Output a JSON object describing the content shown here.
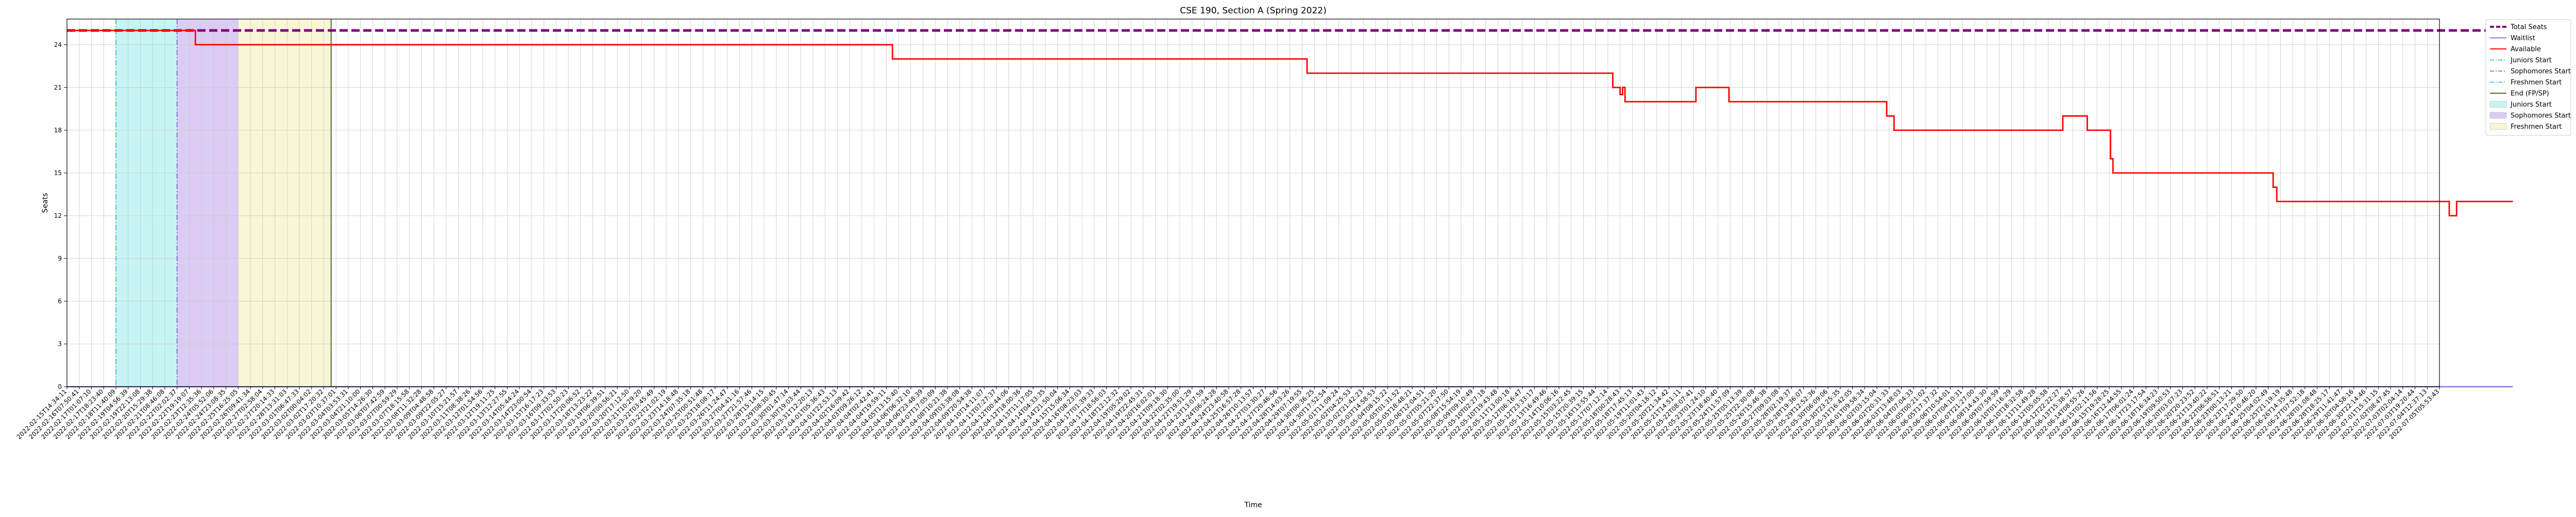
{
  "chart_data": {
    "type": "line",
    "title": "CSE 190, Section A (Spring 2022)",
    "xlabel": "Time",
    "ylabel": "Seats",
    "ylim": [
      0,
      25.8
    ],
    "yticks": [
      0,
      3,
      6,
      9,
      12,
      15,
      18,
      21,
      24
    ],
    "grid": true,
    "legend_position": "outside-right",
    "colors": {
      "total": "#800080",
      "waitlist": "#9370db",
      "available": "#ff0000",
      "juniors_line": "#20b2aa",
      "sophomores_line": "#6a5acd",
      "end_line": "#556b2f",
      "juniors_fill": "#c6f4f4",
      "sophomores_fill": "#dcccf3",
      "freshmen_fill": "#f8f6d6"
    },
    "x_tick_labels": [
      "2022-02-15T14:34:11",
      "2022-02-16T07:50:41",
      "2022-02-17T01:07:10",
      "2022-02-17T18:23:40",
      "2022-02-18T11:40:09",
      "2022-02-19T04:56:39",
      "2022-02-19T22:13:08",
      "2022-02-20T15:29:38",
      "2022-02-21T08:46:08",
      "2022-02-22T02:02:37",
      "2022-02-22T19:19:07",
      "2022-02-23T12:35:36",
      "2022-02-24T05:52:06",
      "2022-02-24T23:08:35",
      "2022-02-25T16:25:05",
      "2022-02-26T09:41:34",
      "2022-02-27T02:58:04",
      "2022-02-27T20:14:33",
      "2022-02-28T13:31:03",
      "2022-03-01T06:47:33",
      "2022-03-02T00:04:02",
      "2022-03-02T17:20:32",
      "2022-03-03T10:37:01",
      "2022-03-04T03:53:31",
      "2022-03-04T21:10:00",
      "2022-03-05T14:26:30",
      "2022-03-06T07:42:59",
      "2022-03-07T00:59:29",
      "2022-03-07T18:15:58",
      "2022-03-08T11:32:28",
      "2022-03-09T04:48:58",
      "2022-03-09T22:05:27",
      "2022-03-10T15:21:57",
      "2022-03-11T08:38:26",
      "2022-03-12T01:54:56",
      "2022-03-12T19:11:25",
      "2022-03-13T12:27:55",
      "2022-03-14T05:44:24",
      "2022-03-14T23:00:54",
      "2022-03-15T16:17:23",
      "2022-03-16T09:33:53",
      "2022-03-17T02:50:23",
      "2022-03-17T20:06:52",
      "2022-03-18T13:23:22",
      "2022-03-19T06:39:51",
      "2022-03-20T00:56:21",
      "2022-03-20T17:12:50",
      "2022-03-21T10:29:20",
      "2022-03-22T03:45:49",
      "2022-03-22T21:02:19",
      "2022-03-23T14:18:48",
      "2022-03-24T07:35:18",
      "2022-03-25T00:51:48",
      "2022-03-25T18:08:17",
      "2022-03-26T11:24:47",
      "2022-03-27T04:41:16",
      "2022-03-27T21:57:46",
      "2022-03-28T15:14:15",
      "2022-03-29T08:30:45",
      "2022-03-30T01:47:14",
      "2022-03-30T19:03:44",
      "2022-03-31T12:20:13",
      "2022-04-01T05:36:43",
      "2022-04-01T22:53:13",
      "2022-04-02T16:09:42",
      "2022-04-03T09:26:12",
      "2022-04-04T02:42:41",
      "2022-04-04T19:59:11",
      "2022-04-05T13:15:40",
      "2022-04-06T06:32:10",
      "2022-04-06T23:48:39",
      "2022-04-07T17:05:09",
      "2022-04-08T10:21:38",
      "2022-04-09T03:38:08",
      "2022-04-09T20:54:38",
      "2022-04-10T14:11:07",
      "2022-04-11T07:27:37",
      "2022-04-12T00:44:06",
      "2022-04-12T18:00:36",
      "2022-04-13T11:17:05",
      "2022-04-14T04:33:35",
      "2022-04-14T21:50:04",
      "2022-04-15T15:06:34",
      "2022-04-16T08:23:03",
      "2022-04-17T01:39:33",
      "2022-04-17T18:56:03",
      "2022-04-18T12:12:32",
      "2022-04-19T05:29:02",
      "2022-04-19T22:45:31",
      "2022-04-20T16:02:01",
      "2022-04-21T09:18:30",
      "2022-04-22T02:35:00",
      "2022-04-22T19:51:29",
      "2022-04-23T13:07:59",
      "2022-04-24T06:24:28",
      "2022-04-24T23:40:58",
      "2022-04-25T16:57:28",
      "2022-04-26T10:13:57",
      "2022-04-27T03:30:27",
      "2022-04-27T20:46:56",
      "2022-04-28T14:03:26",
      "2022-04-29T07:19:55",
      "2022-04-30T00:36:25",
      "2022-04-30T17:52:54",
      "2022-05-01T11:09:24",
      "2022-05-02T04:25:53",
      "2022-05-02T21:42:23",
      "2022-05-03T14:58:53",
      "2022-05-04T08:15:22",
      "2022-05-05T01:31:52",
      "2022-05-05T18:48:21",
      "2022-05-06T12:04:51",
      "2022-05-07T05:21:20",
      "2022-05-07T22:37:50",
      "2022-05-08T15:54:19",
      "2022-05-09T09:10:49",
      "2022-05-10T02:27:18",
      "2022-05-10T19:43:48",
      "2022-05-11T13:00:18",
      "2022-05-12T06:16:47",
      "2022-05-12T23:33:17",
      "2022-05-13T16:49:46",
      "2022-05-14T10:06:16",
      "2022-05-15T03:22:45",
      "2022-05-15T20:39:15",
      "2022-05-16T13:55:44",
      "2022-05-17T07:12:14",
      "2022-05-18T00:28:43",
      "2022-05-18T17:45:13",
      "2022-05-19T11:01:43",
      "2022-05-20T04:18:12",
      "2022-05-20T21:34:42",
      "2022-05-21T14:51:11",
      "2022-05-22T08:07:41",
      "2022-05-23T01:24:10",
      "2022-05-23T18:40:40",
      "2022-05-24T11:57:09",
      "2022-05-25T05:13:39",
      "2022-05-25T22:30:08",
      "2022-05-26T15:46:38",
      "2022-05-27T09:03:08",
      "2022-05-28T02:19:37",
      "2022-05-28T19:36:07",
      "2022-05-29T12:52:36",
      "2022-05-30T06:09:06",
      "2022-05-30T23:25:35",
      "2022-05-31T16:42:05",
      "2022-06-01T09:58:34",
      "2022-06-02T03:15:04",
      "2022-06-02T20:31:33",
      "2022-06-03T13:48:03",
      "2022-06-04T07:04:33",
      "2022-06-05T00:21:02",
      "2022-06-05T17:37:32",
      "2022-06-06T10:54:01",
      "2022-06-07T04:10:31",
      "2022-06-07T21:27:00",
      "2022-06-08T14:43:30",
      "2022-06-09T07:59:59",
      "2022-06-10T01:16:29",
      "2022-06-10T18:32:58",
      "2022-06-11T11:49:28",
      "2022-06-12T05:05:58",
      "2022-06-12T22:22:27",
      "2022-06-13T15:38:57",
      "2022-06-14T08:55:26",
      "2022-06-15T02:11:56",
      "2022-06-15T19:28:25",
      "2022-06-16T12:44:55",
      "2022-06-17T06:01:24",
      "2022-06-17T23:17:54",
      "2022-06-18T16:34:23",
      "2022-06-19T09:50:53",
      "2022-06-20T03:07:23",
      "2022-06-20T20:23:52",
      "2022-06-21T13:40:22",
      "2022-06-22T06:56:51",
      "2022-06-23T00:13:21",
      "2022-06-23T17:29:50",
      "2022-06-24T10:46:20",
      "2022-06-25T04:02:49",
      "2022-06-25T21:19:19",
      "2022-06-26T14:35:48",
      "2022-06-27T07:52:18",
      "2022-06-28T01:08:48",
      "2022-06-28T18:25:17",
      "2022-06-29T11:41:47",
      "2022-06-30T04:58:16",
      "2022-06-30T22:14:46",
      "2022-07-01T15:31:15",
      "2022-07-02T08:47:45",
      "2022-07-03T02:04:14",
      "2022-07-03T19:20:44",
      "2022-07-04T12:37:13",
      "2022-07-05T05:53:43"
    ],
    "series": [
      {
        "name": "Total Seats",
        "style": "dashed-thick",
        "points": [
          [
            0,
            25
          ],
          [
            200,
            25
          ]
        ]
      },
      {
        "name": "Waitlist",
        "style": "solid",
        "points": [
          [
            0,
            0
          ],
          [
            200,
            0
          ]
        ]
      },
      {
        "name": "Available",
        "style": "step",
        "points": [
          [
            0,
            25
          ],
          [
            10.5,
            25
          ],
          [
            10.5,
            24
          ],
          [
            67.5,
            24
          ],
          [
            67.5,
            23
          ],
          [
            101.4,
            23
          ],
          [
            101.4,
            22
          ],
          [
            126.4,
            22
          ],
          [
            126.4,
            21
          ],
          [
            127,
            21
          ],
          [
            127,
            20.5
          ],
          [
            127.2,
            20.5
          ],
          [
            127.2,
            21
          ],
          [
            127.4,
            21
          ],
          [
            127.4,
            20
          ],
          [
            133.2,
            20
          ],
          [
            133.2,
            21
          ],
          [
            135.9,
            21
          ],
          [
            135.9,
            20
          ],
          [
            148.8,
            20
          ],
          [
            148.8,
            19
          ],
          [
            149.4,
            19
          ],
          [
            149.4,
            18
          ],
          [
            163.2,
            18
          ],
          [
            163.2,
            19
          ],
          [
            165.2,
            19
          ],
          [
            165.2,
            18
          ],
          [
            167.1,
            18
          ],
          [
            167.1,
            16
          ],
          [
            167.3,
            16
          ],
          [
            167.3,
            15
          ],
          [
            180.4,
            15
          ],
          [
            180.4,
            14
          ],
          [
            180.7,
            14
          ],
          [
            180.7,
            13
          ],
          [
            194.8,
            13
          ],
          [
            194.8,
            12
          ],
          [
            195.4,
            12
          ],
          [
            195.4,
            13
          ],
          [
            200,
            13
          ]
        ]
      }
    ],
    "vertical_lines": [
      {
        "name": "Juniors Start",
        "x": 4.0,
        "style": "dashdot"
      },
      {
        "name": "Sophomores Start",
        "x": 9.0,
        "style": "dashdot"
      },
      {
        "name": "End (FP/SP)",
        "x": 21.6,
        "style": "solid"
      }
    ],
    "shaded_regions": [
      {
        "name": "Juniors Start",
        "x0": 4.0,
        "x1": 9.0
      },
      {
        "name": "Sophomores Start",
        "x0": 9.0,
        "x1": 14.0
      },
      {
        "name": "Freshmen Start",
        "x0": 14.0,
        "x1": 21.6
      }
    ],
    "legend": [
      {
        "label": "Total Seats",
        "kind": "line",
        "color_key": "total",
        "dash": "8,4",
        "width": 4
      },
      {
        "label": "Waitlist",
        "kind": "line",
        "color_key": "waitlist",
        "dash": "",
        "width": 2
      },
      {
        "label": "Available",
        "kind": "line",
        "color_key": "available",
        "dash": "",
        "width": 2
      },
      {
        "label": "Juniors Start",
        "kind": "line",
        "color_key": "juniors_line",
        "dash": "8,3,2,3",
        "width": 1.5
      },
      {
        "label": "Sophomores Start",
        "kind": "line",
        "color_key": "sophomores_line",
        "dash": "8,3,2,3",
        "width": 1.5
      },
      {
        "label": "Freshmen Start",
        "kind": "line",
        "color_key": "juniors_line",
        "dash": "8,3,2,3",
        "width": 1.5
      },
      {
        "label": "End (FP/SP)",
        "kind": "line",
        "color_key": "end_line",
        "dash": "",
        "width": 2
      },
      {
        "label": "Juniors Start",
        "kind": "patch",
        "color_key": "juniors_fill"
      },
      {
        "label": "Sophomores Start",
        "kind": "patch",
        "color_key": "sophomores_fill"
      },
      {
        "label": "Freshmen Start",
        "kind": "patch",
        "color_key": "freshmen_fill"
      }
    ]
  }
}
